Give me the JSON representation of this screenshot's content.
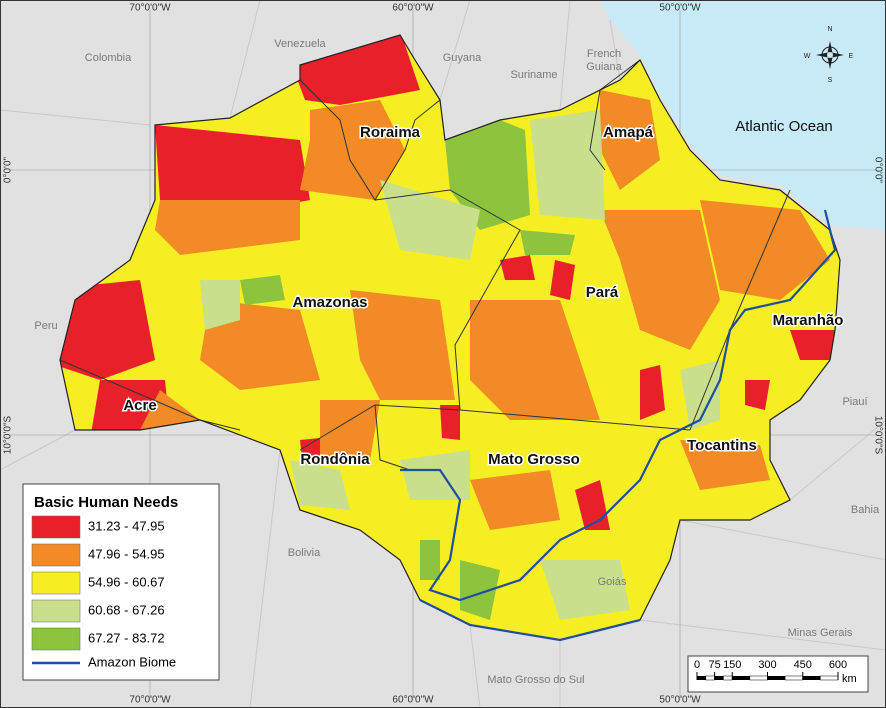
{
  "map": {
    "legend": {
      "title": "Basic Human Needs",
      "classes": [
        {
          "label": "31.23 - 47.95",
          "color": "#e8202a"
        },
        {
          "label": "47.96 - 54.95",
          "color": "#f28a25"
        },
        {
          "label": "54.96 - 60.67",
          "color": "#f4ee22"
        },
        {
          "label": "60.68 - 67.26",
          "color": "#cadf8c"
        },
        {
          "label": "67.27 - 83.72",
          "color": "#8cc43e"
        }
      ],
      "biome": {
        "label": "Amazon Biome",
        "color": "#1f4ea0"
      }
    },
    "states": [
      "Roraima",
      "Amapá",
      "Amazonas",
      "Pará",
      "Maranhão",
      "Acre",
      "Rondônia",
      "Mato Grosso",
      "Tocantins"
    ],
    "neighbors": [
      "Colombia",
      "Venezuela",
      "Guyana",
      "Suriname",
      "French Guiana",
      "Peru",
      "Bolivia",
      "Piauí",
      "Bahia",
      "Goiás",
      "Minas Gerais",
      "Mato Grosso do Sul"
    ],
    "ocean": "Atlantic Ocean",
    "graticule": {
      "longitudes": [
        "70°0'0\"W",
        "60°0'0\"W",
        "50°0'0\"W"
      ],
      "latitudes": [
        "0°0'0\"",
        "10°0'0\"S"
      ]
    },
    "scale": {
      "ticks": [
        0,
        75,
        150,
        300,
        450,
        600
      ],
      "unit": "km"
    },
    "compass": [
      "N",
      "E",
      "S",
      "W"
    ]
  }
}
